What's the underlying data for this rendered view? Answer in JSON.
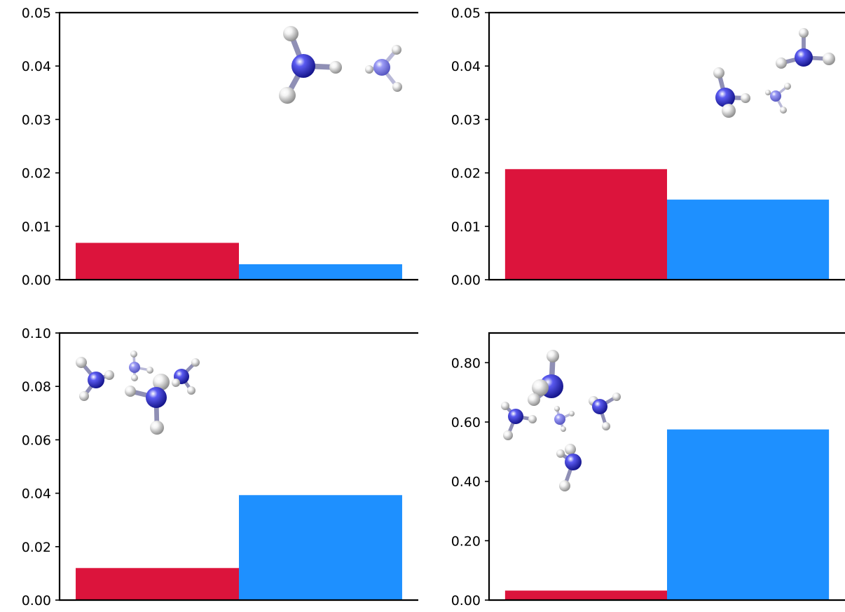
{
  "colors": {
    "series_a": "#dc143c",
    "series_b": "#1e90ff",
    "nitrogen": "#2b2bd6",
    "hydrogen": "#e8e8e8"
  },
  "chart_data": [
    {
      "type": "bar",
      "panel": "top-left",
      "values": [
        0.0069,
        0.0029
      ],
      "ylim": [
        0,
        0.05
      ],
      "yticks": [
        "0.00",
        "0.01",
        "0.02",
        "0.03",
        "0.04",
        "0.05"
      ],
      "xlabel": "",
      "ylabel": "",
      "title": "",
      "grid": false,
      "inset_image": "molecular-cluster-2-ammonia"
    },
    {
      "type": "bar",
      "panel": "top-right",
      "values": [
        0.0207,
        0.015
      ],
      "ylim": [
        0,
        0.05
      ],
      "yticks": [
        "0.00",
        "0.01",
        "0.02",
        "0.03",
        "0.04",
        "0.05"
      ],
      "xlabel": "",
      "ylabel": "",
      "title": "",
      "grid": false,
      "inset_image": "molecular-cluster-3-ammonia"
    },
    {
      "type": "bar",
      "panel": "bottom-left",
      "values": [
        0.012,
        0.0393
      ],
      "ylim": [
        0,
        0.1
      ],
      "yticks": [
        "0.00",
        "0.02",
        "0.04",
        "0.06",
        "0.08",
        "0.10"
      ],
      "xlabel": "",
      "ylabel": "",
      "title": "",
      "grid": false,
      "inset_image": "molecular-cluster-4-ammonia"
    },
    {
      "type": "bar",
      "panel": "bottom-right",
      "values": [
        0.032,
        0.575
      ],
      "ylim": [
        0,
        0.9
      ],
      "yticks": [
        "0.00",
        "0.20",
        "0.40",
        "0.60",
        "0.80"
      ],
      "xlabel": "",
      "ylabel": "",
      "title": "",
      "grid": false,
      "inset_image": "molecular-cluster-5-ammonia"
    }
  ]
}
